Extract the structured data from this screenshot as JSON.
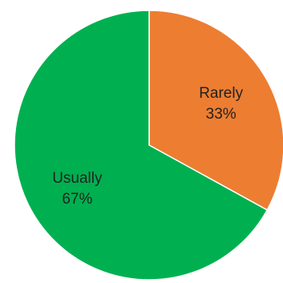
{
  "chart_data": {
    "type": "pie",
    "title": "",
    "start_angle": "top",
    "direction": "clockwise",
    "legend": "none",
    "slices": [
      {
        "label": "Rarely",
        "value": 33,
        "value_label": "33%",
        "color": "#ED7D31"
      },
      {
        "label": "Usually",
        "value": 67,
        "value_label": "67%",
        "color": "#00B050"
      }
    ]
  }
}
